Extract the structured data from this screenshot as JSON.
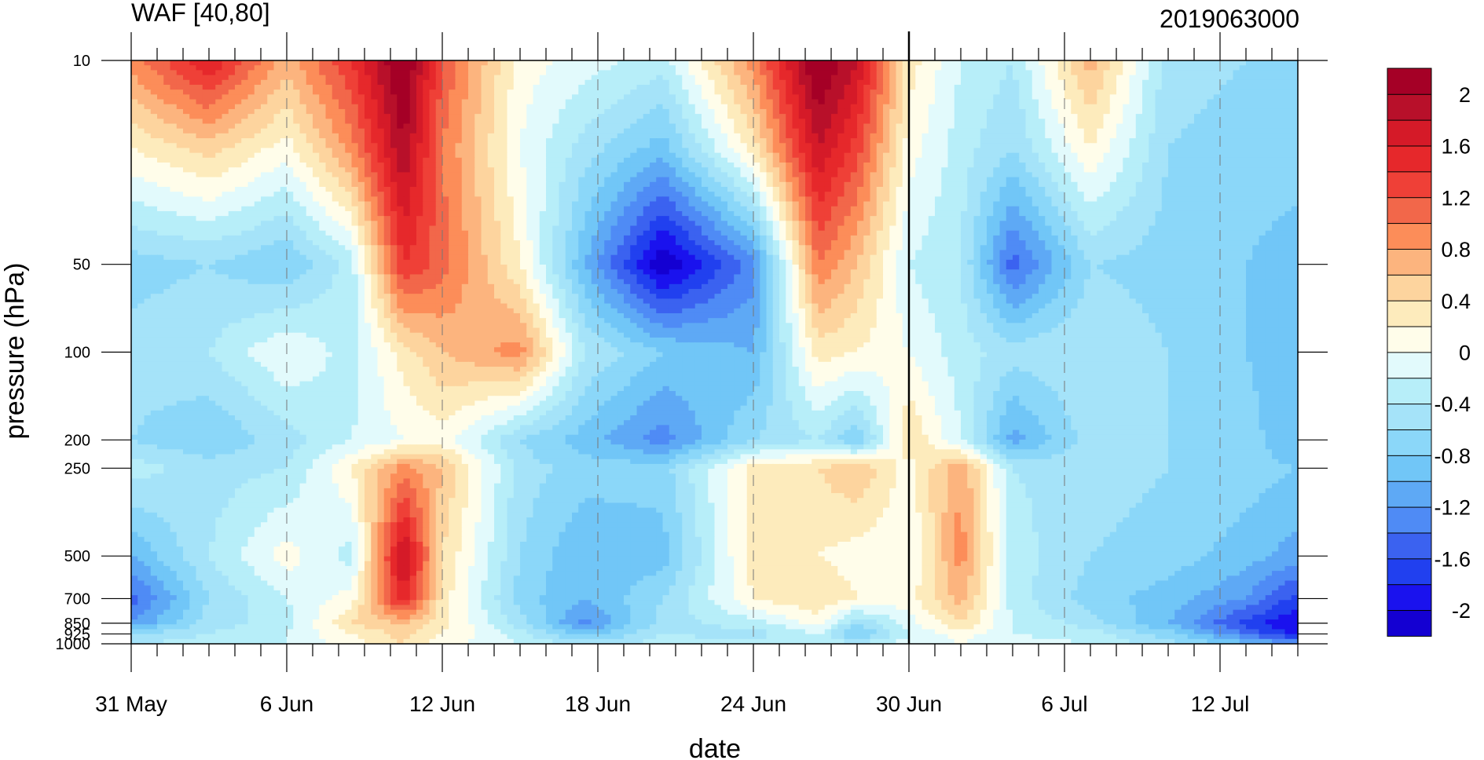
{
  "chart_data": {
    "type": "heatmap",
    "title": "WAF [40,80]",
    "subtitle": "2019063000",
    "xlabel": "date",
    "ylabel": "pressure (hPa)",
    "x_tick_labels": [
      "31 May",
      "6 Jun",
      "12 Jun",
      "18 Jun",
      "24 Jun",
      "30 Jun",
      "6 Jul",
      "12 Jul"
    ],
    "x_tick_days": [
      0,
      6,
      12,
      18,
      24,
      30,
      36,
      42
    ],
    "x_range_days": [
      0,
      45
    ],
    "highlight_day": 30,
    "y_scale": "log",
    "y_range": [
      1000,
      10
    ],
    "y_ticks": [
      10,
      50,
      100,
      200,
      250,
      500,
      700,
      850,
      925,
      1000
    ],
    "y_tick_labels": [
      "10",
      "50",
      "100",
      "200",
      "250",
      "500",
      "700",
      "850",
      "925",
      "1000"
    ],
    "colorbar": {
      "levels": [
        -2.2,
        -2.0,
        -1.8,
        -1.6,
        -1.4,
        -1.2,
        -1.0,
        -0.8,
        -0.6,
        -0.4,
        -0.2,
        0.0,
        0.2,
        0.4,
        0.6,
        0.8,
        1.0,
        1.2,
        1.4,
        1.6,
        1.8,
        2.0,
        2.2
      ],
      "colors": [
        "#1400d2",
        "#1a12ee",
        "#2140ef",
        "#3b62f0",
        "#4f8bf5",
        "#5ea9f5",
        "#71c6f7",
        "#8bd7f9",
        "#a5e3f9",
        "#b7eef9",
        "#e2fafc",
        "#fffdea",
        "#fdebbc",
        "#fdd49e",
        "#fcb47e",
        "#fc8d59",
        "#f2674a",
        "#ef4037",
        "#e6282b",
        "#d51a28",
        "#b8102a",
        "#a50026"
      ],
      "tick_labels": [
        "2",
        "1.6",
        "1.2",
        "0.8",
        "0.4",
        "0",
        "-0.4",
        "-0.8",
        "-1.2",
        "-1.6",
        "-2"
      ]
    },
    "days": [
      0,
      3,
      6,
      8.5,
      10.5,
      12,
      15,
      17.5,
      20.5,
      24,
      26.5,
      28,
      30,
      32,
      34,
      37,
      40,
      43,
      45
    ],
    "levels_hPa": [
      10,
      20,
      50,
      100,
      200,
      250,
      500,
      700,
      850,
      925,
      1000
    ],
    "values": [
      [
        0.9,
        1.6,
        0.7,
        1.4,
        2.3,
        1.2,
        0.1,
        -0.1,
        -0.3,
        0.9,
        2.3,
        1.8,
        0.3,
        -0.2,
        -0.4,
        0.7,
        -0.5,
        -0.6,
        -0.6
      ],
      [
        0.2,
        0.5,
        0.1,
        0.9,
        2.0,
        1.0,
        0.0,
        -0.5,
        -0.9,
        0.3,
        1.8,
        1.3,
        0.1,
        -0.3,
        -0.6,
        0.2,
        -0.6,
        -0.7,
        -0.7
      ],
      [
        -0.7,
        -0.6,
        -0.8,
        -0.3,
        1.4,
        1.1,
        0.2,
        -1.0,
        -2.2,
        -1.3,
        1.0,
        0.6,
        -0.2,
        -0.4,
        -1.5,
        -0.6,
        -0.7,
        -0.8,
        -0.9
      ],
      [
        -0.5,
        -0.4,
        0.0,
        -0.3,
        0.3,
        0.6,
        0.9,
        -0.4,
        -0.8,
        -1.0,
        0.3,
        0.2,
        0.0,
        -0.3,
        -0.5,
        -0.4,
        -0.6,
        -0.8,
        -1.0
      ],
      [
        -0.6,
        -0.8,
        -0.5,
        -0.2,
        0.0,
        0.1,
        -0.6,
        -0.9,
        -1.3,
        -0.6,
        -0.4,
        -0.8,
        0.4,
        -0.2,
        -1.1,
        -0.5,
        -0.6,
        -0.7,
        -1.0
      ],
      [
        -0.3,
        -0.5,
        -0.4,
        0.2,
        0.9,
        0.6,
        -0.5,
        -0.7,
        -0.7,
        0.3,
        0.4,
        0.6,
        0.1,
        0.8,
        -0.4,
        -0.5,
        -0.6,
        -0.7,
        -0.8
      ],
      [
        -1.0,
        -0.4,
        0.1,
        -0.3,
        1.9,
        0.4,
        -0.6,
        -1.0,
        -0.9,
        0.3,
        0.2,
        0.1,
        0.0,
        0.9,
        -0.3,
        -0.6,
        -0.7,
        -0.9,
        -1.1
      ],
      [
        -1.5,
        -0.6,
        -0.2,
        0.1,
        1.6,
        0.3,
        -0.7,
        -1.0,
        -0.6,
        0.2,
        0.4,
        0.2,
        0.1,
        0.7,
        -0.3,
        -0.7,
        -0.9,
        -1.2,
        -1.7
      ],
      [
        -1.2,
        -0.5,
        -0.3,
        0.4,
        0.6,
        0.3,
        -0.5,
        -1.3,
        -0.5,
        -0.3,
        0.1,
        -0.6,
        -0.1,
        0.4,
        -0.2,
        -0.5,
        -1.0,
        -1.7,
        -2.0
      ],
      [
        -0.6,
        -0.4,
        -0.2,
        0.2,
        0.5,
        0.2,
        -0.3,
        -0.9,
        -0.4,
        -0.5,
        -0.2,
        -0.9,
        -0.2,
        0.1,
        -0.2,
        -0.3,
        -0.7,
        -1.4,
        -1.9
      ],
      [
        -0.4,
        -0.3,
        -0.2,
        0.1,
        0.4,
        0.1,
        -0.2,
        -0.5,
        -0.3,
        -0.3,
        -0.2,
        -0.4,
        -0.1,
        0.0,
        -0.1,
        -0.2,
        -0.5,
        -0.9,
        -1.2
      ]
    ]
  }
}
